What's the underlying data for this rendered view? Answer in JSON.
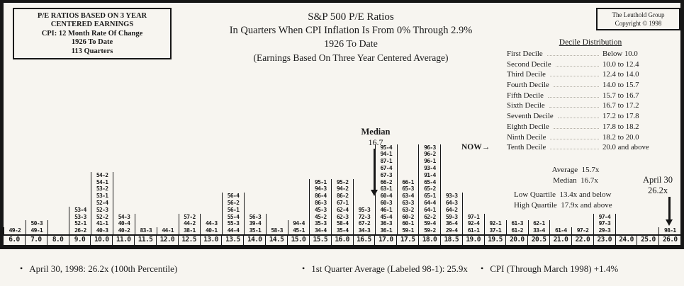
{
  "info_box": {
    "lines": [
      "P/E RATIOS BASED ON 3 YEAR",
      "CENTERED EARNINGS",
      "CPI: 12 Month Rate Of Change",
      "1926 To Date",
      "113 Quarters"
    ]
  },
  "title": {
    "line1": "S&P 500 P/E Ratios",
    "line2": "In Quarters When CPI Inflation Is From 0% Through 2.9%",
    "line3": "1926 To Date",
    "line4": "(Earnings Based On Three Year Centered Average)"
  },
  "brand_box": {
    "line1": "The Leuthold Group",
    "line2": "Copyright © 1998"
  },
  "decile_panel": {
    "title": "Decile Distribution",
    "now_label": "NOW",
    "now_arrow": "→",
    "rows": [
      {
        "label": "First Decile",
        "range": "Below 10.0"
      },
      {
        "label": "Second Decile",
        "range": "10.0 to 12.4"
      },
      {
        "label": "Third Decile",
        "range": "12.4 to 14.0"
      },
      {
        "label": "Fourth Decile",
        "range": "14.0 to 15.7"
      },
      {
        "label": "Fifth Decile",
        "range": "15.7 to 16.7"
      },
      {
        "label": "Sixth Decile",
        "range": "16.7 to 17.2"
      },
      {
        "label": "Seventh Decile",
        "range": "17.2 to 17.8"
      },
      {
        "label": "Eighth Decile",
        "range": "17.8 to 18.2"
      },
      {
        "label": "Ninth Decile",
        "range": "18.2 to 20.0"
      },
      {
        "label": "Tenth Decile",
        "range": "20.0 and above"
      }
    ]
  },
  "stats": {
    "average_line": "Average  15.7x",
    "median_line": "Median  16.7x",
    "low_quartile_line": "Low Quartile  13.4x and below",
    "high_quartile_line": "High Quartile  17.9x and above"
  },
  "annotations": {
    "median_label": "Median",
    "median_value": "16.7",
    "april_line1": "April 30",
    "april_line2": "26.2x"
  },
  "footnotes": {
    "bullet": "•",
    "items": [
      "April 30, 1998: 26.2x (100th Percentile)",
      "1st Quarter Average (Labeled 98-1): 25.9x",
      "CPI (Through March 1998) +1.4%"
    ]
  },
  "chart_data": {
    "type": "bar",
    "subtype": "stacked-quarter-label-histogram",
    "title": "S&P 500 P/E Ratios In Quarters When CPI Inflation Is From 0% Through 2.9%, 1926 To Date (Earnings Based On Three Year Centered Average)",
    "xlabel": "",
    "ylabel": "",
    "grid": false,
    "legend_position": "none",
    "total_quarters": 113,
    "median": 16.7,
    "average": 15.7,
    "current_value_april_30_1998": 26.2,
    "x_ticks": [
      "6.0",
      "7.0",
      "8.0",
      "9.0",
      "10.0",
      "11.0",
      "11.5",
      "12.0",
      "12.5",
      "13.0",
      "13.5",
      "14.0",
      "14.5",
      "15.0",
      "15.5",
      "16.0",
      "16.5",
      "17.0",
      "17.5",
      "18.0",
      "18.5",
      "19.0",
      "19.5",
      "20.0",
      "20.5",
      "21.0",
      "22.0",
      "23.0",
      "24.0",
      "25.0",
      "26.0"
    ],
    "bins": [
      {
        "pe": "6.0",
        "count": 1,
        "quarters": [
          "49-2"
        ]
      },
      {
        "pe": "7.0",
        "count": 2,
        "quarters": [
          "50-3",
          "49-1"
        ]
      },
      {
        "pe": "8.0",
        "count": 0,
        "quarters": []
      },
      {
        "pe": "9.0",
        "count": 4,
        "quarters": [
          "53-4",
          "53-3",
          "52-1",
          "26-2"
        ]
      },
      {
        "pe": "10.0",
        "count": 9,
        "quarters": [
          "54-2",
          "54-1",
          "53-2",
          "53-1",
          "52-4",
          "52-3",
          "52-2",
          "41-1",
          "40-3"
        ]
      },
      {
        "pe": "11.0",
        "count": 3,
        "quarters": [
          "54-3",
          "40-4",
          "40-2"
        ]
      },
      {
        "pe": "11.5",
        "count": 1,
        "quarters": [
          "83-3"
        ]
      },
      {
        "pe": "12.0",
        "count": 1,
        "quarters": [
          "44-1"
        ]
      },
      {
        "pe": "12.5",
        "count": 3,
        "quarters": [
          "57-2",
          "44-2",
          "38-1"
        ]
      },
      {
        "pe": "13.0",
        "count": 2,
        "quarters": [
          "44-3",
          "40-1"
        ]
      },
      {
        "pe": "13.5",
        "count": 6,
        "quarters": [
          "56-4",
          "56-2",
          "56-1",
          "55-4",
          "55-3",
          "44-4"
        ]
      },
      {
        "pe": "14.0",
        "count": 3,
        "quarters": [
          "56-3",
          "39-4",
          "35-1"
        ]
      },
      {
        "pe": "14.5",
        "count": 1,
        "quarters": [
          "58-3"
        ]
      },
      {
        "pe": "15.0",
        "count": 2,
        "quarters": [
          "94-4",
          "45-1"
        ]
      },
      {
        "pe": "15.5",
        "count": 8,
        "quarters": [
          "95-1",
          "94-3",
          "86-4",
          "86-3",
          "45-3",
          "45-2",
          "35-3",
          "34-4"
        ]
      },
      {
        "pe": "16.0",
        "count": 8,
        "quarters": [
          "95-2",
          "94-2",
          "86-2",
          "67-1",
          "62-4",
          "62-3",
          "58-4",
          "35-4"
        ]
      },
      {
        "pe": "16.5",
        "count": 4,
        "quarters": [
          "95-3",
          "72-3",
          "67-2",
          "34-3"
        ]
      },
      {
        "pe": "17.0",
        "count": 13,
        "quarters": [
          "95-4",
          "94-1",
          "87-1",
          "67-4",
          "67-3",
          "66-2",
          "63-1",
          "60-4",
          "60-3",
          "46-1",
          "45-4",
          "36-3",
          "36-1"
        ]
      },
      {
        "pe": "17.5",
        "count": 8,
        "quarters": [
          "66-1",
          "65-3",
          "63-4",
          "63-3",
          "63-2",
          "60-2",
          "60-1",
          "59-1"
        ]
      },
      {
        "pe": "18.0",
        "count": 13,
        "quarters": [
          "96-3",
          "96-2",
          "96-1",
          "93-4",
          "91-4",
          "65-4",
          "65-2",
          "65-1",
          "64-4",
          "64-1",
          "62-2",
          "59-4",
          "59-2"
        ]
      },
      {
        "pe": "18.5",
        "count": 6,
        "quarters": [
          "93-3",
          "64-3",
          "64-2",
          "59-3",
          "36-4",
          "29-4"
        ]
      },
      {
        "pe": "19.0",
        "count": 3,
        "quarters": [
          "97-1",
          "92-4",
          "61-1"
        ]
      },
      {
        "pe": "19.5",
        "count": 2,
        "quarters": [
          "92-1",
          "37-1"
        ]
      },
      {
        "pe": "20.0",
        "count": 2,
        "quarters": [
          "61-3",
          "61-2"
        ]
      },
      {
        "pe": "20.5",
        "count": 2,
        "quarters": [
          "62-1",
          "33-4"
        ]
      },
      {
        "pe": "21.0",
        "count": 1,
        "quarters": [
          "61-4"
        ]
      },
      {
        "pe": "22.0",
        "count": 1,
        "quarters": [
          "97-2"
        ]
      },
      {
        "pe": "23.0",
        "count": 3,
        "quarters": [
          "97-4",
          "97-3",
          "29-3"
        ]
      },
      {
        "pe": "24.0",
        "count": 0,
        "quarters": []
      },
      {
        "pe": "25.0",
        "count": 0,
        "quarters": []
      },
      {
        "pe": "26.0",
        "count": 1,
        "quarters": [
          "98-1"
        ]
      }
    ]
  }
}
